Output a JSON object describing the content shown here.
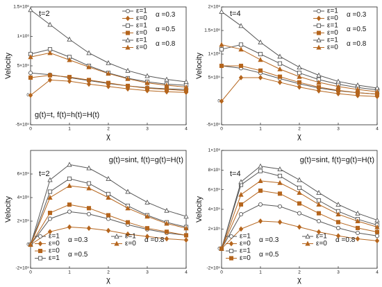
{
  "chart_data": [
    {
      "type": "line",
      "title": "t=2",
      "annotation": "g(t)=t, f(t)=h(t)=H(t)",
      "ylabel": "Velocity",
      "xlabel": "χ",
      "legend": "upper right",
      "x": [
        0,
        0.5,
        1,
        1.5,
        2,
        2.5,
        3,
        3.5,
        4
      ],
      "xlim": [
        0,
        4
      ],
      "xticks": [
        0,
        1,
        2,
        3,
        4
      ],
      "ylim": [
        -500000,
        1500000
      ],
      "yticks": [
        {
          "value": -500000,
          "label": "-5×10⁵"
        },
        0,
        {
          "value": 500000,
          "label": "5×10⁵"
        },
        {
          "value": 1000000,
          "label": "1×10⁶"
        },
        {
          "value": 1500000,
          "label": "1.5×10⁶"
        }
      ],
      "series": [
        {
          "name": "ε=1",
          "alpha": "α =0.3",
          "color": "#555555",
          "marker": "circle",
          "filled": false,
          "values": [
            380000,
            350000,
            300000,
            250000,
            200000,
            160000,
            130000,
            110000,
            100000
          ]
        },
        {
          "name": "ε=0",
          "color": "#b5651d",
          "marker": "diamond",
          "filled": true,
          "values": [
            0,
            260000,
            240000,
            190000,
            150000,
            110000,
            80000,
            60000,
            50000
          ]
        },
        {
          "name": "ε=1",
          "alpha": "α =0.5",
          "color": "#555555",
          "marker": "square",
          "filled": false,
          "values": [
            700000,
            780000,
            650000,
            500000,
            380000,
            290000,
            230000,
            190000,
            170000
          ]
        },
        {
          "name": "ε=0",
          "color": "#b5651d",
          "marker": "square",
          "filled": true,
          "values": [
            300000,
            340000,
            310000,
            260000,
            210000,
            160000,
            120000,
            100000,
            80000
          ]
        },
        {
          "name": "ε=1",
          "alpha": "α =0.8",
          "color": "#555555",
          "marker": "triangle",
          "filled": false,
          "values": [
            1450000,
            1200000,
            950000,
            720000,
            550000,
            420000,
            330000,
            270000,
            230000
          ]
        },
        {
          "name": "ε=0",
          "color": "#b5651d",
          "marker": "triangle",
          "filled": true,
          "values": [
            650000,
            720000,
            600000,
            480000,
            370000,
            280000,
            210000,
            170000,
            140000
          ]
        }
      ]
    },
    {
      "type": "line",
      "title": "t=4",
      "ylabel": "Velocity",
      "xlabel": "χ",
      "legend": "upper right",
      "x": [
        0,
        0.5,
        1,
        1.5,
        2,
        2.5,
        3,
        3.5,
        4
      ],
      "xlim": [
        0,
        4
      ],
      "xticks": [
        0,
        1,
        2,
        3,
        4
      ],
      "ylim": [
        -500000,
        2000000
      ],
      "yticks": [
        {
          "value": -500000,
          "label": "-5×10⁵"
        },
        0,
        {
          "value": 500000,
          "label": "5×10⁵"
        },
        {
          "value": 1000000,
          "label": "1×10⁶"
        },
        {
          "value": 1500000,
          "label": "1.5×10⁶"
        },
        {
          "value": 2000000,
          "label": "2×10⁶"
        }
      ],
      "series": [
        {
          "name": "ε=1",
          "alpha": "α =0.3",
          "color": "#555555",
          "marker": "circle",
          "filled": false,
          "values": [
            750000,
            700000,
            600000,
            480000,
            370000,
            280000,
            220000,
            180000,
            150000
          ]
        },
        {
          "name": "ε=0",
          "color": "#b5651d",
          "marker": "diamond",
          "filled": true,
          "values": [
            0,
            500000,
            500000,
            400000,
            300000,
            220000,
            160000,
            120000,
            100000
          ]
        },
        {
          "name": "ε=1",
          "alpha": "α =0.5",
          "color": "#555555",
          "marker": "square",
          "filled": false,
          "values": [
            1100000,
            1200000,
            1000000,
            800000,
            600000,
            460000,
            360000,
            290000,
            240000
          ]
        },
        {
          "name": "ε=0",
          "color": "#b5651d",
          "marker": "square",
          "filled": true,
          "values": [
            750000,
            750000,
            650000,
            520000,
            400000,
            300000,
            230000,
            180000,
            150000
          ]
        },
        {
          "name": "ε=1",
          "alpha": "α =0.8",
          "color": "#555555",
          "marker": "triangle",
          "filled": false,
          "values": [
            1900000,
            1600000,
            1250000,
            950000,
            720000,
            550000,
            420000,
            340000,
            280000
          ]
        },
        {
          "name": "ε=0",
          "color": "#b5651d",
          "marker": "triangle",
          "filled": true,
          "values": [
            1200000,
            1100000,
            880000,
            680000,
            520000,
            400000,
            310000,
            250000,
            200000
          ]
        }
      ]
    },
    {
      "type": "line",
      "title": "t=2",
      "annotation": "g(t)=sint, f(t)=g(t)=H(t)",
      "ylabel": "Velocity",
      "xlabel": "χ",
      "legend": "lower left",
      "x": [
        0,
        0.5,
        1,
        1.5,
        2,
        2.5,
        3,
        3.5,
        4
      ],
      "xlim": [
        0,
        4
      ],
      "xticks": [
        0,
        1,
        2,
        3,
        4
      ],
      "ylim": [
        -200000,
        800000
      ],
      "yticks": [
        {
          "value": -200000,
          "label": "-2×10⁵"
        },
        0,
        {
          "value": 200000,
          "label": "2×10⁵"
        },
        {
          "value": 400000,
          "label": "4×10⁵"
        },
        {
          "value": 600000,
          "label": "6×10⁵"
        }
      ],
      "series": [
        {
          "name": "ε=1",
          "alpha": "α =0.3",
          "color": "#555555",
          "marker": "circle",
          "filled": false,
          "values": [
            0,
            220000,
            280000,
            260000,
            220000,
            170000,
            130000,
            100000,
            80000
          ]
        },
        {
          "name": "ε=0",
          "color": "#b5651d",
          "marker": "diamond",
          "filled": true,
          "values": [
            0,
            110000,
            150000,
            140000,
            120000,
            90000,
            70000,
            50000,
            40000
          ]
        },
        {
          "name": "ε=0",
          "alpha": "α =0.5",
          "color": "#b5651d",
          "marker": "square",
          "filled": true,
          "values": [
            0,
            270000,
            340000,
            310000,
            250000,
            190000,
            140000,
            110000,
            80000
          ]
        },
        {
          "name": "ε=1",
          "color": "#555555",
          "marker": "square",
          "filled": false,
          "values": [
            0,
            450000,
            560000,
            520000,
            430000,
            330000,
            250000,
            190000,
            150000
          ]
        },
        {
          "name": "ε=1",
          "alpha": "α =0.8",
          "color": "#555555",
          "marker": "triangle",
          "filled": false,
          "values": [
            0,
            550000,
            680000,
            650000,
            560000,
            450000,
            360000,
            290000,
            240000
          ]
        },
        {
          "name": "ε=0",
          "color": "#b5651d",
          "marker": "triangle",
          "filled": true,
          "values": [
            0,
            400000,
            500000,
            480000,
            400000,
            310000,
            240000,
            180000,
            140000
          ]
        }
      ]
    },
    {
      "type": "line",
      "title": "t=4",
      "annotation": "g(t)=sint, f(t)=g(t)=H(t)",
      "ylabel": "Velocity",
      "xlabel": "χ",
      "legend": "lower left",
      "x": [
        0,
        0.5,
        1,
        1.5,
        2,
        2.5,
        3,
        3.5,
        4
      ],
      "xlim": [
        0,
        4
      ],
      "xticks": [
        0,
        1,
        2,
        3,
        4
      ],
      "ylim": [
        -200000,
        1000000
      ],
      "yticks": [
        {
          "value": -200000,
          "label": "-2×10⁵"
        },
        0,
        {
          "value": 200000,
          "label": "2×10⁵"
        },
        {
          "value": 400000,
          "label": "4×10⁵"
        },
        {
          "value": 600000,
          "label": "6×10⁵"
        },
        {
          "value": 800000,
          "label": "8×10⁵"
        },
        {
          "value": 1000000,
          "label": "1×10⁶"
        }
      ],
      "series": [
        {
          "name": "ε=1",
          "alpha": "α =0.3",
          "color": "#555555",
          "marker": "circle",
          "filled": false,
          "values": [
            0,
            350000,
            450000,
            430000,
            360000,
            280000,
            210000,
            160000,
            130000
          ]
        },
        {
          "name": "ε=0",
          "color": "#b5651d",
          "marker": "diamond",
          "filled": true,
          "values": [
            0,
            200000,
            280000,
            270000,
            220000,
            170000,
            130000,
            100000,
            80000
          ]
        },
        {
          "name": "ε=1",
          "alpha": "α =0.5",
          "color": "#555555",
          "marker": "square",
          "filled": false,
          "values": [
            0,
            650000,
            790000,
            740000,
            620000,
            490000,
            380000,
            300000,
            240000
          ]
        },
        {
          "name": "ε=0",
          "color": "#b5651d",
          "marker": "square",
          "filled": true,
          "values": [
            0,
            450000,
            590000,
            560000,
            460000,
            360000,
            270000,
            210000,
            170000
          ]
        },
        {
          "name": "ε=1",
          "alpha": "α =0.8",
          "color": "#555555",
          "marker": "triangle",
          "filled": false,
          "values": [
            0,
            680000,
            840000,
            810000,
            700000,
            570000,
            450000,
            360000,
            290000
          ]
        },
        {
          "name": "ε=0",
          "color": "#b5651d",
          "marker": "triangle",
          "filled": true,
          "values": [
            0,
            550000,
            690000,
            670000,
            570000,
            450000,
            350000,
            280000,
            220000
          ]
        }
      ]
    }
  ]
}
